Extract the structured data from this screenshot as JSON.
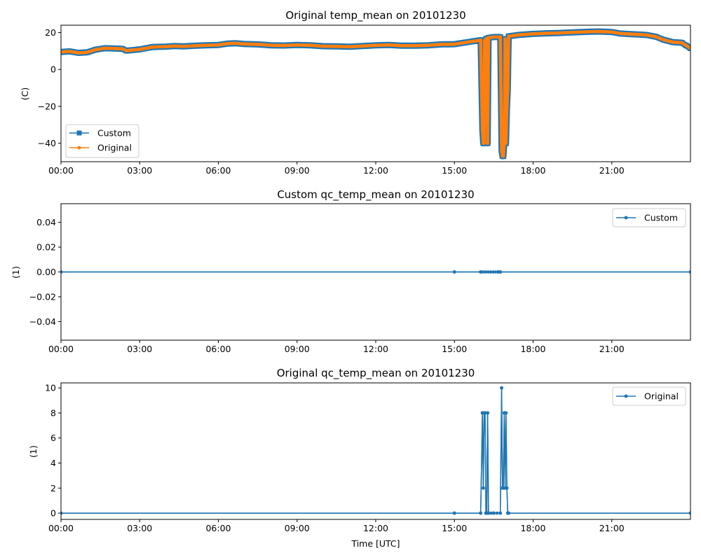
{
  "colors": {
    "custom": "#1f77b4",
    "original": "#ff7f0e",
    "axis": "#000000",
    "background": "#ffffff"
  },
  "chart_data": [
    {
      "type": "line",
      "title": "Original temp_mean on 20101230",
      "xlabel": "",
      "ylabel": "(C)",
      "xlim": [
        "00:00",
        "24:00"
      ],
      "ylim": [
        -50,
        24
      ],
      "grid": false,
      "xticks": [
        "00:00",
        "03:00",
        "06:00",
        "09:00",
        "12:00",
        "15:00",
        "18:00",
        "21:00"
      ],
      "yticks": [
        20,
        0,
        -20,
        -40
      ],
      "legend_position": "lower-left",
      "series": [
        {
          "name": "Custom",
          "marker": "square",
          "color": "#1f77b4",
          "points": [
            [
              "00:00",
              9.5
            ],
            [
              "00:20",
              9.8
            ],
            [
              "00:40",
              9
            ],
            [
              "01:00",
              9.3
            ],
            [
              "01:20",
              10.8
            ],
            [
              "01:40",
              11.5
            ],
            [
              "02:00",
              11.4
            ],
            [
              "02:20",
              11.2
            ],
            [
              "02:30",
              10.2
            ],
            [
              "02:40",
              10.4
            ],
            [
              "03:00",
              10.9
            ],
            [
              "03:30",
              12.2
            ],
            [
              "04:00",
              12.4
            ],
            [
              "04:20",
              12.7
            ],
            [
              "04:40",
              12.5
            ],
            [
              "05:00",
              12.8
            ],
            [
              "05:30",
              13.1
            ],
            [
              "06:00",
              13.3
            ],
            [
              "06:20",
              14
            ],
            [
              "06:40",
              14.2
            ],
            [
              "07:00",
              13.8
            ],
            [
              "07:30",
              13.6
            ],
            [
              "08:00",
              13.1
            ],
            [
              "08:30",
              13
            ],
            [
              "09:00",
              13.3
            ],
            [
              "09:30",
              13.1
            ],
            [
              "10:00",
              12.6
            ],
            [
              "10:30",
              12.5
            ],
            [
              "11:00",
              12.3
            ],
            [
              "11:30",
              12.7
            ],
            [
              "12:00",
              13.1
            ],
            [
              "12:30",
              13.3
            ],
            [
              "13:00",
              12.9
            ],
            [
              "13:30",
              12.9
            ],
            [
              "14:00",
              13.1
            ],
            [
              "14:30",
              13.6
            ],
            [
              "15:00",
              13.7
            ],
            [
              "16:00",
              15.9
            ],
            [
              "16:04",
              -33
            ],
            [
              "16:06",
              -40
            ],
            [
              "16:08",
              -40
            ],
            [
              "16:09",
              15.6
            ],
            [
              "16:12",
              16.5
            ],
            [
              "16:14",
              16.7
            ],
            [
              "16:16",
              -40
            ],
            [
              "16:18",
              17.2
            ],
            [
              "16:30",
              17.6
            ],
            [
              "16:45",
              17.6
            ],
            [
              "16:48",
              -44
            ],
            [
              "16:50",
              -47
            ],
            [
              "16:52",
              -47
            ],
            [
              "16:54",
              -40
            ],
            [
              "16:56",
              16.5
            ],
            [
              "16:58",
              -40
            ],
            [
              "17:00",
              -21
            ],
            [
              "17:02",
              -11
            ],
            [
              "17:04",
              18
            ],
            [
              "17:30",
              18.8
            ],
            [
              "18:00",
              19.3
            ],
            [
              "18:30",
              19.6
            ],
            [
              "19:00",
              19.8
            ],
            [
              "19:30",
              20.1
            ],
            [
              "20:00",
              20.4
            ],
            [
              "20:30",
              20.6
            ],
            [
              "21:00",
              20.3
            ],
            [
              "21:20",
              19.5
            ],
            [
              "21:40",
              19.2
            ],
            [
              "22:00",
              19
            ],
            [
              "22:20",
              18.7
            ],
            [
              "22:40",
              17.8
            ],
            [
              "23:00",
              16
            ],
            [
              "23:20",
              14.8
            ],
            [
              "23:40",
              14.5
            ],
            [
              "23:50",
              13
            ],
            [
              "24:00",
              11.5
            ]
          ]
        },
        {
          "name": "Original",
          "marker": "dot",
          "color": "#ff7f0e",
          "points": [
            [
              "00:00",
              9.5
            ],
            [
              "00:20",
              9.8
            ],
            [
              "00:40",
              9
            ],
            [
              "01:00",
              9.3
            ],
            [
              "01:20",
              10.8
            ],
            [
              "01:40",
              11.5
            ],
            [
              "02:00",
              11.4
            ],
            [
              "02:20",
              11.2
            ],
            [
              "02:30",
              10.2
            ],
            [
              "02:40",
              10.4
            ],
            [
              "03:00",
              10.9
            ],
            [
              "03:30",
              12.2
            ],
            [
              "04:00",
              12.4
            ],
            [
              "04:20",
              12.7
            ],
            [
              "04:40",
              12.5
            ],
            [
              "05:00",
              12.8
            ],
            [
              "05:30",
              13.1
            ],
            [
              "06:00",
              13.3
            ],
            [
              "06:20",
              14
            ],
            [
              "06:40",
              14.2
            ],
            [
              "07:00",
              13.8
            ],
            [
              "07:30",
              13.6
            ],
            [
              "08:00",
              13.1
            ],
            [
              "08:30",
              13
            ],
            [
              "09:00",
              13.3
            ],
            [
              "09:30",
              13.1
            ],
            [
              "10:00",
              12.6
            ],
            [
              "10:30",
              12.5
            ],
            [
              "11:00",
              12.3
            ],
            [
              "11:30",
              12.7
            ],
            [
              "12:00",
              13.1
            ],
            [
              "12:30",
              13.3
            ],
            [
              "13:00",
              12.9
            ],
            [
              "13:30",
              12.9
            ],
            [
              "14:00",
              13.1
            ],
            [
              "14:30",
              13.6
            ],
            [
              "15:00",
              13.7
            ],
            [
              "16:00",
              15.9
            ],
            [
              "16:04",
              -33
            ],
            [
              "16:06",
              -40
            ],
            [
              "16:08",
              -40
            ],
            [
              "16:09",
              15.6
            ],
            [
              "16:12",
              16.5
            ],
            [
              "16:14",
              16.7
            ],
            [
              "16:16",
              -40
            ],
            [
              "16:18",
              17.2
            ],
            [
              "16:30",
              17.6
            ],
            [
              "16:45",
              17.6
            ],
            [
              "16:48",
              -44
            ],
            [
              "16:50",
              -47
            ],
            [
              "16:52",
              -47
            ],
            [
              "16:54",
              -40
            ],
            [
              "16:56",
              16.5
            ],
            [
              "16:58",
              -40
            ],
            [
              "17:00",
              -21
            ],
            [
              "17:02",
              -11
            ],
            [
              "17:04",
              18
            ],
            [
              "17:30",
              18.8
            ],
            [
              "18:00",
              19.3
            ],
            [
              "18:30",
              19.6
            ],
            [
              "19:00",
              19.8
            ],
            [
              "19:30",
              20.1
            ],
            [
              "20:00",
              20.4
            ],
            [
              "20:30",
              20.6
            ],
            [
              "21:00",
              20.3
            ],
            [
              "21:20",
              19.5
            ],
            [
              "21:40",
              19.2
            ],
            [
              "22:00",
              19
            ],
            [
              "22:20",
              18.7
            ],
            [
              "22:40",
              17.8
            ],
            [
              "23:00",
              16
            ],
            [
              "23:20",
              14.8
            ],
            [
              "23:40",
              14.5
            ],
            [
              "23:50",
              13
            ],
            [
              "24:00",
              11.5
            ]
          ]
        }
      ]
    },
    {
      "type": "line",
      "title": "Custom qc_temp_mean on 20101230",
      "xlabel": "",
      "ylabel": "(1)",
      "xlim": [
        "00:00",
        "24:00"
      ],
      "ylim": [
        -0.055,
        0.055
      ],
      "grid": false,
      "xticks": [
        "00:00",
        "03:00",
        "06:00",
        "09:00",
        "12:00",
        "15:00",
        "18:00",
        "21:00"
      ],
      "yticks": [
        0.04,
        0.02,
        0.0,
        -0.02,
        -0.04
      ],
      "yticklabels": [
        "0.04",
        "0.02",
        "0.00",
        "−0.02",
        "−0.04"
      ],
      "legend_position": "upper-right",
      "series": [
        {
          "name": "Custom",
          "marker": "dot",
          "color": "#1f77b4",
          "points": [
            [
              "00:00",
              0
            ],
            [
              "15:00",
              0
            ],
            [
              "16:00",
              0
            ],
            [
              "16:40",
              0
            ],
            [
              "16:45",
              0
            ],
            [
              "24:00",
              0
            ]
          ]
        }
      ]
    },
    {
      "type": "line",
      "title": "Original qc_temp_mean on 20101230",
      "xlabel": "Time [UTC]",
      "ylabel": "(1)",
      "xlim": [
        "00:00",
        "24:00"
      ],
      "ylim": [
        -0.5,
        10.4
      ],
      "grid": false,
      "xticks": [
        "00:00",
        "03:00",
        "06:00",
        "09:00",
        "12:00",
        "15:00",
        "18:00",
        "21:00"
      ],
      "yticks": [
        10,
        8,
        6,
        4,
        2,
        0
      ],
      "legend_position": "upper-right",
      "series": [
        {
          "name": "Original",
          "marker": "dot",
          "color": "#1f77b4",
          "points": [
            [
              "00:00",
              0
            ],
            [
              "15:00",
              0
            ],
            [
              "16:00",
              0
            ],
            [
              "16:04",
              8
            ],
            [
              "16:06",
              2
            ],
            [
              "16:08",
              8
            ],
            [
              "16:10",
              8
            ],
            [
              "16:12",
              0
            ],
            [
              "16:14",
              0
            ],
            [
              "16:16",
              8
            ],
            [
              "16:18",
              0
            ],
            [
              "16:30",
              0
            ],
            [
              "16:45",
              0
            ],
            [
              "16:48",
              10
            ],
            [
              "16:50",
              2
            ],
            [
              "16:52",
              2
            ],
            [
              "16:54",
              8
            ],
            [
              "16:56",
              2
            ],
            [
              "16:58",
              8
            ],
            [
              "17:00",
              2
            ],
            [
              "17:02",
              0
            ],
            [
              "17:04",
              0
            ],
            [
              "24:00",
              0
            ]
          ]
        }
      ]
    }
  ]
}
